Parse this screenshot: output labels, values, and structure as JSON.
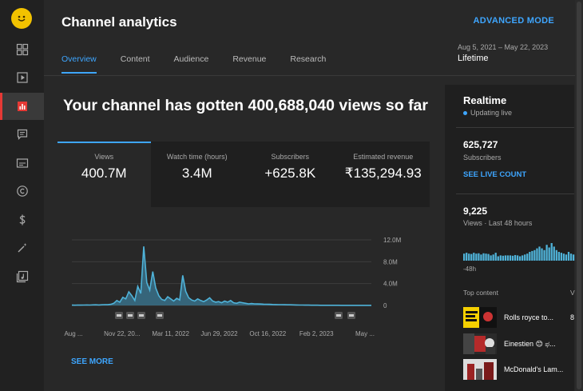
{
  "sidebar": {
    "items": [
      {
        "name": "dashboard-icon"
      },
      {
        "name": "content-icon"
      },
      {
        "name": "analytics-icon"
      },
      {
        "name": "comments-icon"
      },
      {
        "name": "subtitles-icon"
      },
      {
        "name": "copyright-icon"
      },
      {
        "name": "earn-icon"
      },
      {
        "name": "customization-icon"
      },
      {
        "name": "audio-library-icon"
      }
    ],
    "accent": "#e53935"
  },
  "header": {
    "title": "Channel analytics",
    "advanced_mode": "ADVANCED MODE",
    "date_range": "Aug 5, 2021 – May 22, 2023",
    "date_label": "Lifetime",
    "tabs": [
      {
        "label": "Overview"
      },
      {
        "label": "Content"
      },
      {
        "label": "Audience"
      },
      {
        "label": "Revenue"
      },
      {
        "label": "Research"
      }
    ]
  },
  "main": {
    "headline": "Your channel has gotten 400,688,040 views so far",
    "metrics": [
      {
        "label": "Views",
        "value": "400.7M"
      },
      {
        "label": "Watch time (hours)",
        "value": "3.4M"
      },
      {
        "label": "Subscribers",
        "value": "+625.8K"
      },
      {
        "label": "Estimated revenue",
        "value": "₹135,294.93"
      }
    ],
    "see_more": "SEE MORE"
  },
  "chart_data": {
    "type": "area",
    "x_tick_labels": [
      "Aug ...",
      "Nov 22, 20...",
      "Mar 11, 2022",
      "Jun 29, 2022",
      "Oct 16, 2022",
      "Feb 2, 2023",
      "May ..."
    ],
    "y_tick_labels": [
      "12.0M",
      "8.0M",
      "4.0M",
      "0"
    ],
    "ylim": [
      0,
      12000000
    ],
    "series": [
      {
        "values": [
          60000,
          50000,
          70000,
          60000,
          80000,
          90000,
          70000,
          100000,
          120000,
          90000,
          110000,
          150000,
          130000,
          200000,
          400000,
          900000,
          600000,
          1500000,
          1200000,
          2500000,
          1800000,
          900000,
          3500000,
          2200000,
          10800000,
          4200000,
          2800000,
          6200000,
          3200000,
          1800000,
          1100000,
          900000,
          1600000,
          1200000,
          800000,
          1300000,
          1000000,
          5500000,
          2600000,
          1400000,
          1000000,
          800000,
          1200000,
          900000,
          700000,
          1000000,
          1400000,
          800000,
          600000,
          700000,
          500000,
          800000,
          600000,
          900000,
          500000,
          400000,
          600000,
          500000,
          400000,
          300000,
          350000,
          300000,
          280000,
          260000,
          240000,
          220000,
          200000,
          180000,
          160000,
          150000,
          140000,
          130000,
          120000,
          110000,
          100000,
          90000,
          80000,
          70000,
          60000,
          55000,
          50000,
          45000,
          40000,
          35000,
          30000,
          28000,
          26000,
          25000,
          24000,
          22000,
          20000,
          20000,
          18000,
          18000,
          16000,
          15000,
          14000,
          13000,
          12000,
          11000,
          10000
        ]
      }
    ],
    "colors": {
      "line": "#4fb3d9",
      "fill": "#3b7a95"
    }
  },
  "realtime": {
    "title": "Realtime",
    "status": "Updating live",
    "subscribers": "625,727",
    "subscribers_label": "Subscribers",
    "live_count": "SEE LIVE COUNT",
    "views": "9,225",
    "views_label": "Views · Last 48 hours",
    "bars": [
      0.4,
      0.45,
      0.4,
      0.38,
      0.45,
      0.4,
      0.42,
      0.35,
      0.42,
      0.4,
      0.38,
      0.3,
      0.35,
      0.45,
      0.25,
      0.3,
      0.28,
      0.3,
      0.3,
      0.3,
      0.28,
      0.32,
      0.3,
      0.25,
      0.3,
      0.35,
      0.4,
      0.5,
      0.55,
      0.6,
      0.7,
      0.8,
      0.7,
      0.6,
      0.9,
      0.75,
      1.0,
      0.8,
      0.6,
      0.5,
      0.45,
      0.4,
      0.35,
      0.5,
      0.4,
      0.35
    ],
    "bars_label": "-48h",
    "top_content_label": "Top content",
    "top_content_col": "V",
    "videos": [
      {
        "title": "Rolls royce to...",
        "extra": "8"
      },
      {
        "title": "Einestien 😊 ಫ...",
        "extra": ""
      },
      {
        "title": "McDonald's Lam...",
        "extra": ""
      }
    ]
  }
}
